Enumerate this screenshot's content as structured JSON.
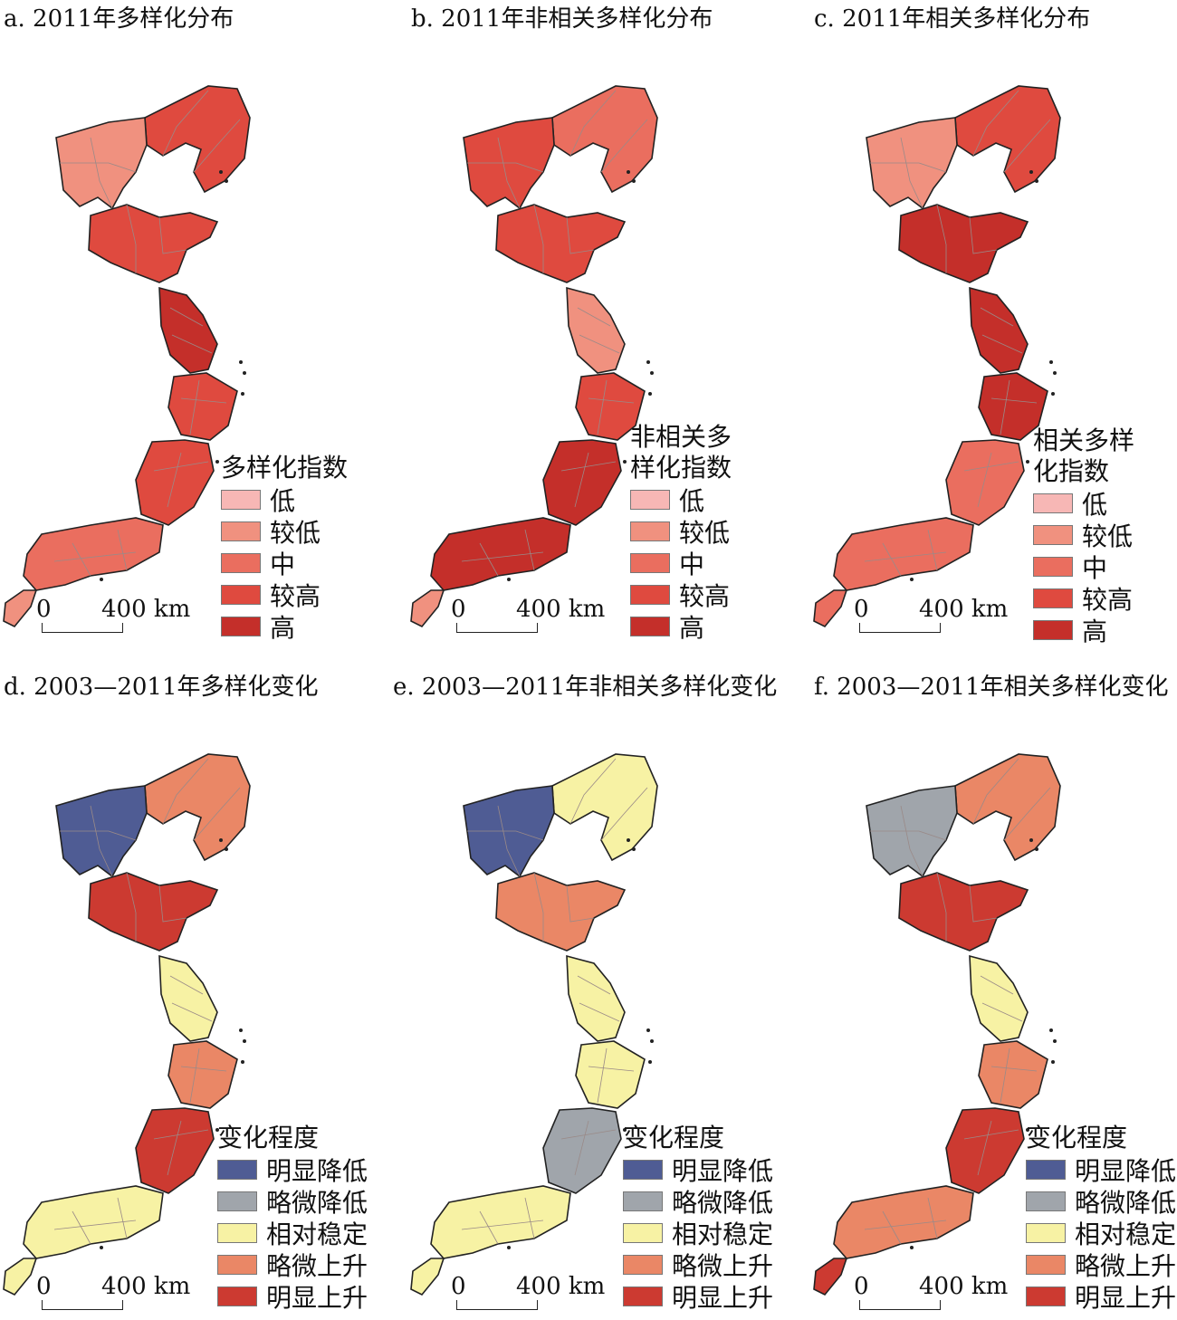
{
  "panels": [
    {
      "title": "a. 2011年多样化分布",
      "legend_title": "多样化指数",
      "scheme": "level"
    },
    {
      "title": "b. 2011年非相关多样化分布",
      "legend_title": "非相关多样化指数",
      "scheme": "level"
    },
    {
      "title": "c. 2011年相关多样化分布",
      "legend_title": "相关多样化指数",
      "scheme": "level"
    },
    {
      "title": "d. 2003—2011年多样化变化",
      "legend_title": "变化程度",
      "scheme": "change"
    },
    {
      "title": "e. 2003—2011年非相关多样化变化",
      "legend_title": "变化程度",
      "scheme": "change"
    },
    {
      "title": "f. 2003—2011年相关多样化变化",
      "legend_title": "变化程度",
      "scheme": "change"
    }
  ],
  "legend_level": [
    {
      "label": "低",
      "color": "#f7b7b5"
    },
    {
      "label": "较低",
      "color": "#f0917f"
    },
    {
      "label": "中",
      "color": "#ea6e5f"
    },
    {
      "label": "较高",
      "color": "#df4a3f"
    },
    {
      "label": "高",
      "color": "#c42f2a"
    }
  ],
  "legend_change": [
    {
      "label": "明显降低",
      "color": "#4f5c94"
    },
    {
      "label": "略微降低",
      "color": "#a0a5ab"
    },
    {
      "label": "相对稳定",
      "color": "#f7f2a4"
    },
    {
      "label": "略微上升",
      "color": "#ea8766"
    },
    {
      "label": "明显上升",
      "color": "#cc3a31"
    }
  ],
  "scalebar": {
    "zero": "0",
    "distance": "400 km"
  }
}
